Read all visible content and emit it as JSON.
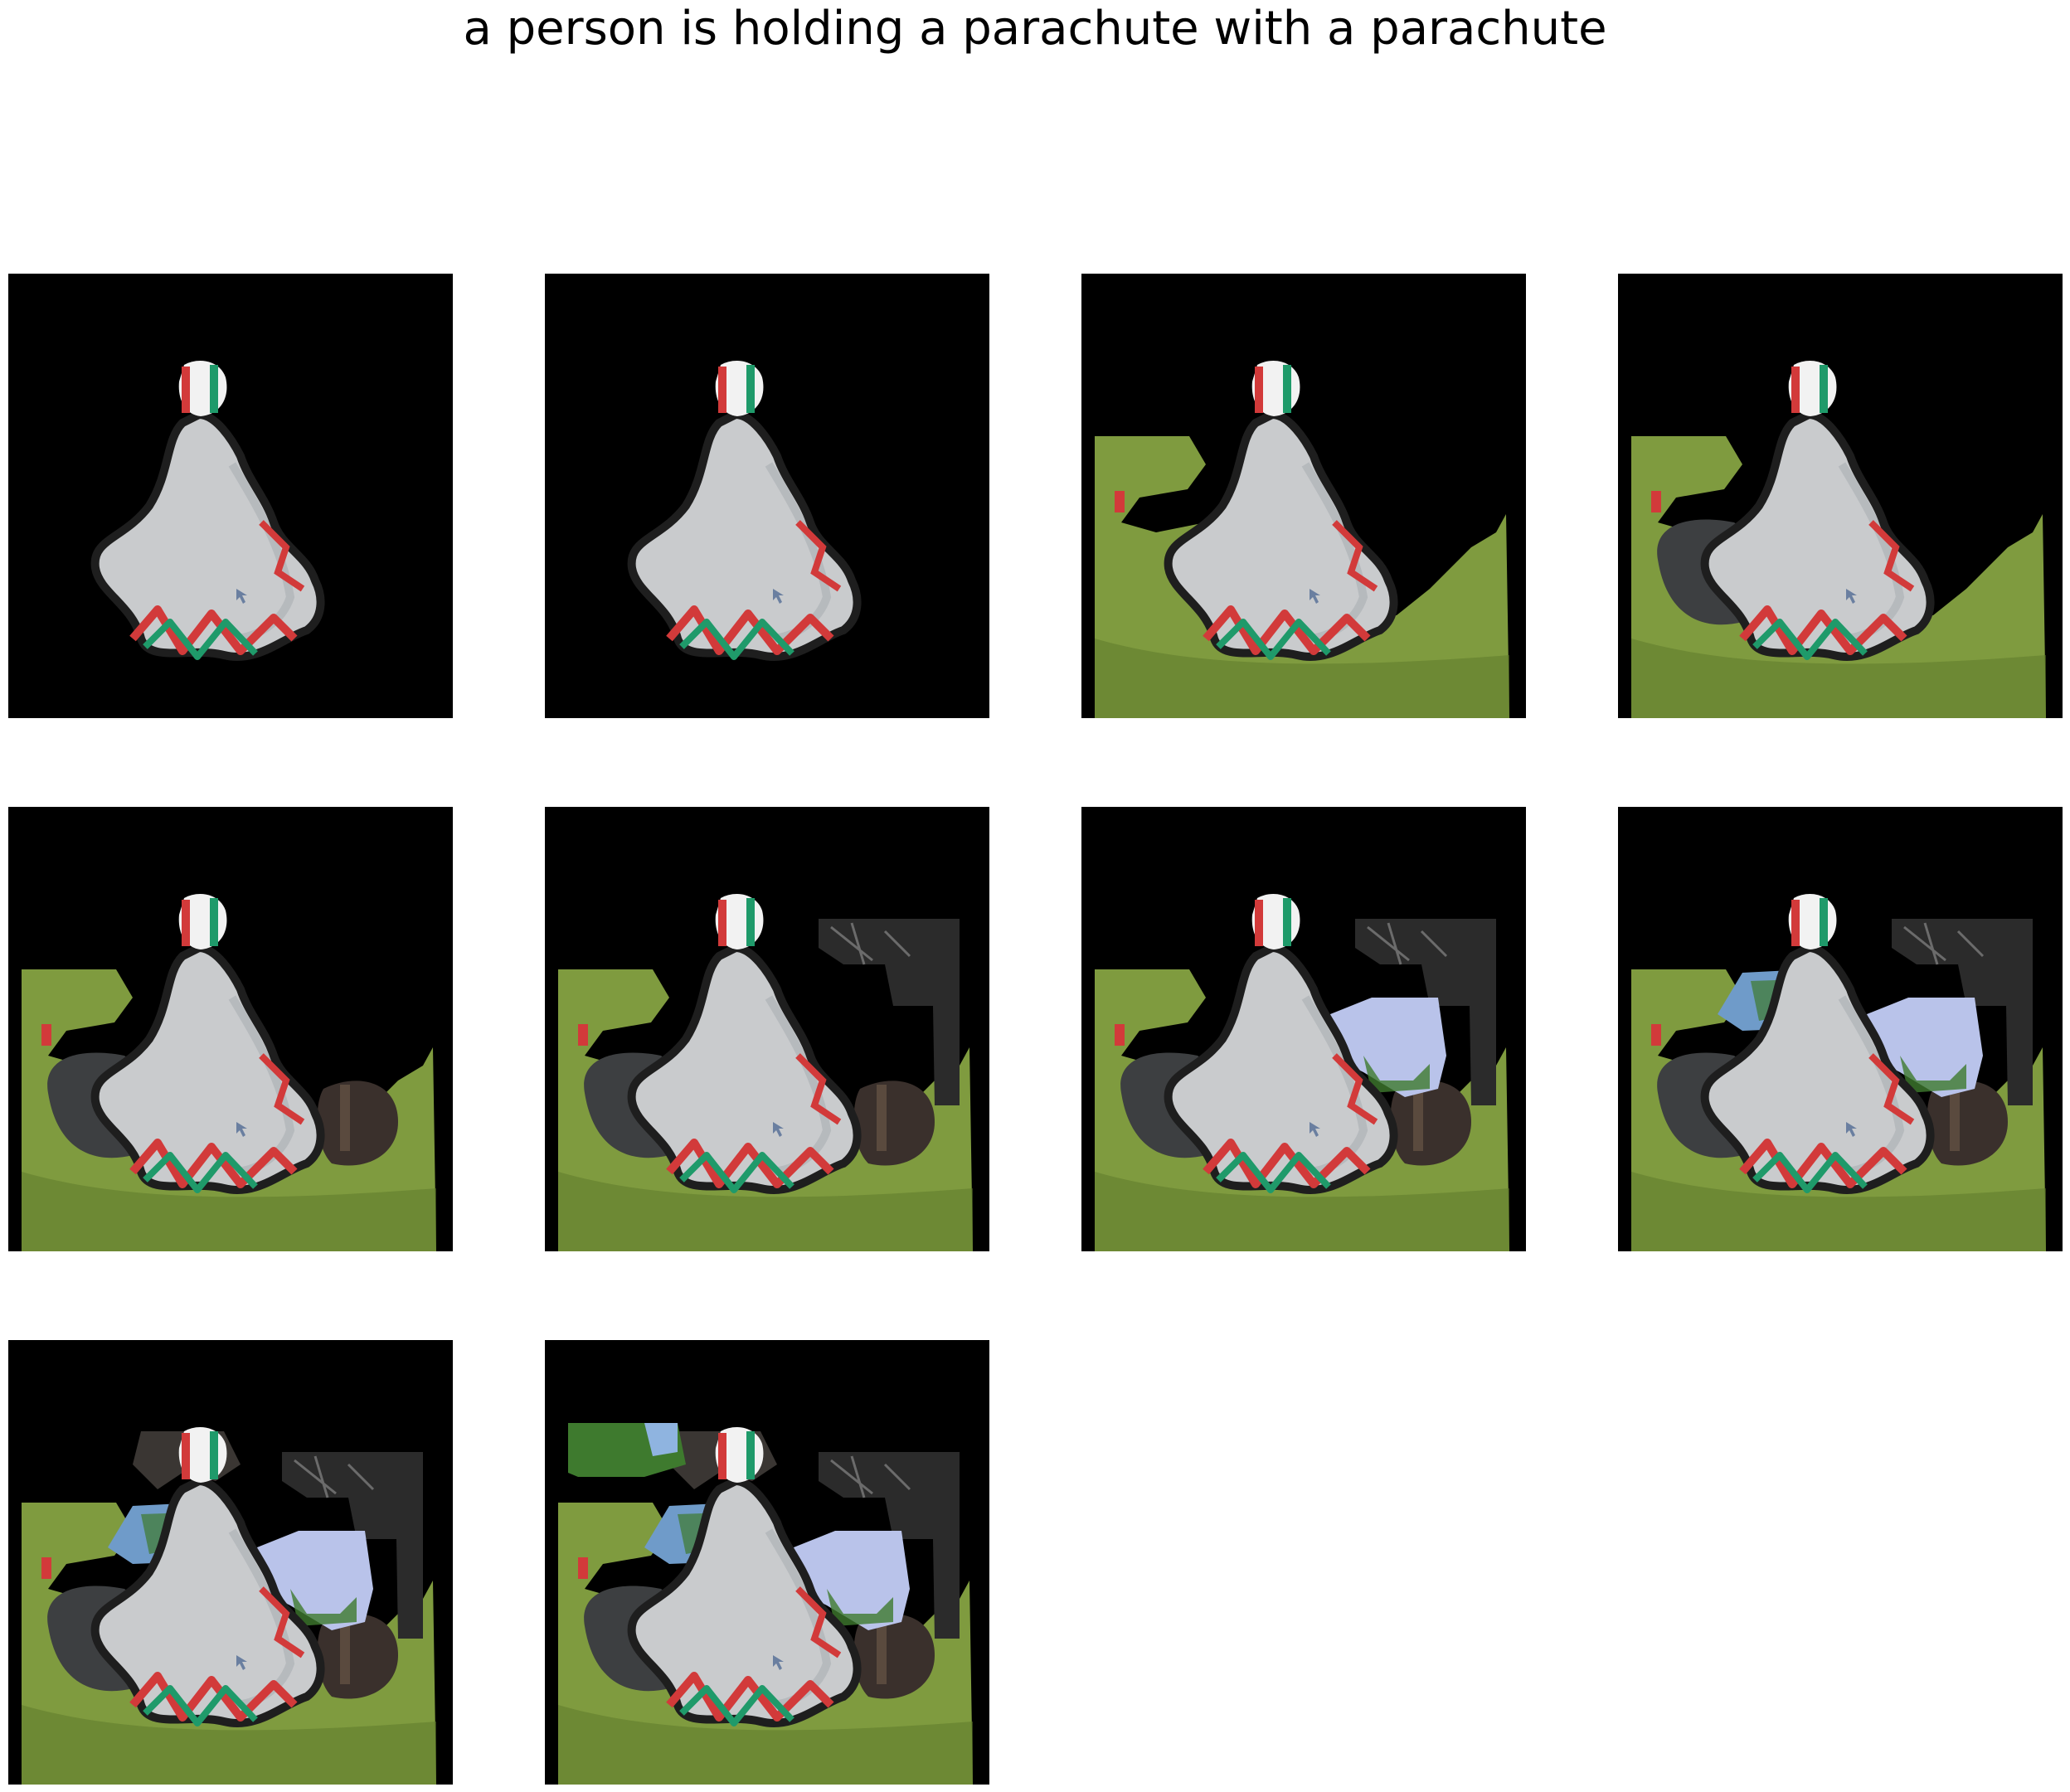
{
  "figure": {
    "title": "a person is holding a parachute with a parachute"
  },
  "colors": {
    "background": "#000000",
    "grass": "#7f9b3f",
    "grass_dark": "#5f7a2c",
    "chute": "#c9cbcd",
    "chute_shade": "#aeb2b6",
    "stripe_red": "#d23a3a",
    "stripe_green": "#1f9a6a",
    "stripe_white": "#f2f2f2",
    "rock": "#3d3f41",
    "foliage_dark": "#2b2b2b",
    "sky_blue": "#8fb4e0",
    "flower": "#b9c3ea",
    "tree": "#3e7a2e"
  },
  "panels": [
    {
      "id": 1,
      "layers": []
    },
    {
      "id": 2,
      "layers": []
    },
    {
      "id": 3,
      "layers": [
        "grass"
      ]
    },
    {
      "id": 4,
      "layers": [
        "grass",
        "rock"
      ]
    },
    {
      "id": 5,
      "layers": [
        "grass",
        "rock",
        "post"
      ]
    },
    {
      "id": 6,
      "layers": [
        "grass",
        "rock",
        "post",
        "dark_foliage"
      ]
    },
    {
      "id": 7,
      "layers": [
        "grass",
        "rock",
        "post",
        "dark_foliage",
        "flowers"
      ]
    },
    {
      "id": 8,
      "layers": [
        "grass",
        "rock",
        "post",
        "dark_foliage",
        "flowers",
        "left_tree"
      ]
    },
    {
      "id": 9,
      "layers": [
        "grass",
        "rock",
        "post",
        "dark_foliage",
        "flowers",
        "left_tree",
        "top_branch"
      ]
    },
    {
      "id": 10,
      "layers": [
        "grass",
        "rock",
        "post",
        "dark_foliage",
        "flowers",
        "left_tree",
        "top_branch",
        "top_tree"
      ]
    }
  ]
}
